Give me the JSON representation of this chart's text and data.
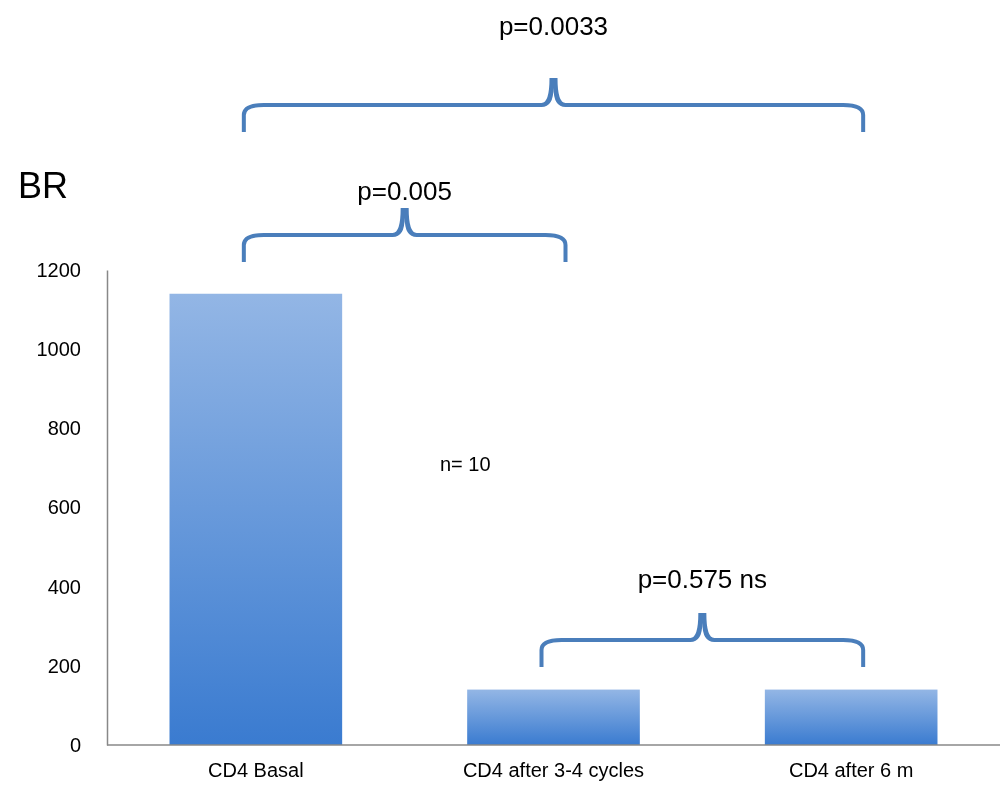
{
  "chart_data": {
    "type": "bar",
    "ylabel": "BR",
    "categories": [
      "CD4 Basal",
      "CD4 after 3-4 cycles",
      "CD4 after 6 m"
    ],
    "values": [
      1140,
      140,
      140
    ],
    "color": "#3a7bd0",
    "ylim": [
      0,
      1200
    ],
    "yticks": [
      0,
      200,
      400,
      600,
      800,
      1000,
      1200
    ],
    "grid": false,
    "annotations": [
      "p=0.0033",
      "p=0.005",
      "p=0.575 ns",
      "n= 10"
    ]
  }
}
